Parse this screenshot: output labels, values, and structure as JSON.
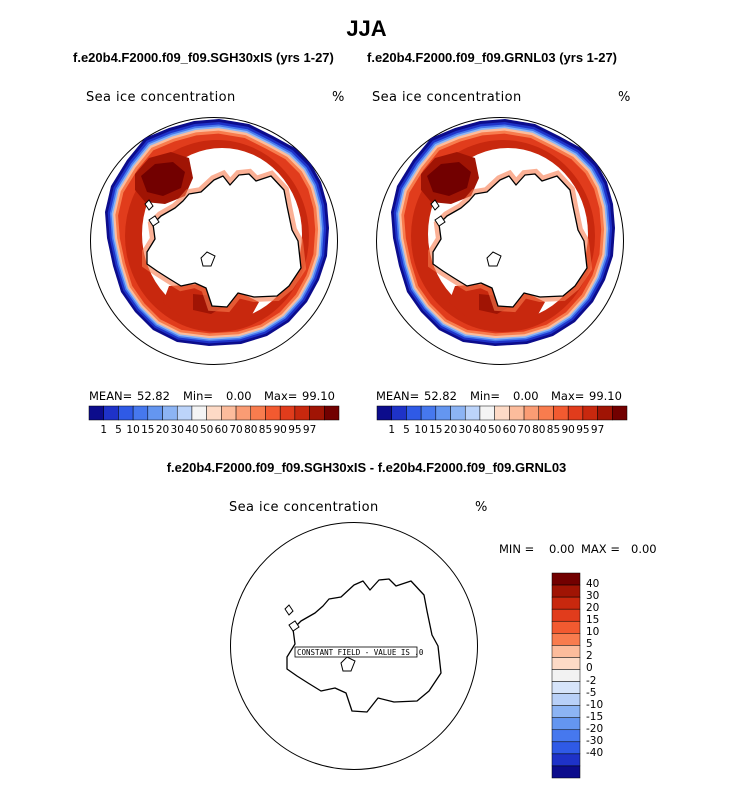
{
  "figure": {
    "title": "JJA",
    "diff_title": "f.e20b4.F2000.f09_f09.SGH30xIS - f.e20b4.F2000.f09_f09.GRNL03"
  },
  "colors": {
    "cbar": [
      "#0c0c8c",
      "#1e32c8",
      "#2f5ae6",
      "#4678ee",
      "#6496f0",
      "#8cb4f4",
      "#bcd4fa",
      "#f4f4f4",
      "#fddac6",
      "#fcbc9c",
      "#fa9c74",
      "#f87c4e",
      "#f25a30",
      "#e13c1c",
      "#c8280e",
      "#a01404",
      "#720000"
    ],
    "diff": [
      "#720000",
      "#a01404",
      "#c8280e",
      "#e13c1c",
      "#f25a30",
      "#f87c4e",
      "#fcbc9c",
      "#fddac6",
      "#f2f2f2",
      "#d6e4fa",
      "#b8d0f8",
      "#8cb4f4",
      "#6496f0",
      "#4678ee",
      "#2f5ae6",
      "#1e32c8",
      "#0c0c8c"
    ]
  },
  "chart_data": [
    {
      "type": "heatmap",
      "title": "f.e20b4.F2000.f09_f09.SGH30xIS (yrs 1-27)",
      "field_label": "Sea ice concentration",
      "units": "%",
      "stats": {
        "mean_label": "MEAN=",
        "mean": "52.82",
        "min_label": "Min=",
        "min": "0.00",
        "max_label": "Max=",
        "max": "99.10"
      },
      "levels": [
        "1",
        "5",
        "10",
        "15",
        "20",
        "30",
        "40",
        "50",
        "60",
        "70",
        "80",
        "85",
        "90",
        "95",
        "97"
      ]
    },
    {
      "type": "heatmap",
      "title": "f.e20b4.F2000.f09_f09.GRNL03 (yrs 1-27)",
      "field_label": "Sea ice concentration",
      "units": "%",
      "stats": {
        "mean_label": "MEAN=",
        "mean": "52.82",
        "min_label": "Min=",
        "min": "0.00",
        "max_label": "Max=",
        "max": "99.10"
      },
      "levels": [
        "1",
        "5",
        "10",
        "15",
        "20",
        "30",
        "40",
        "50",
        "60",
        "70",
        "80",
        "85",
        "90",
        "95",
        "97"
      ]
    },
    {
      "type": "heatmap",
      "field_label": "Sea ice concentration",
      "units": "%",
      "stats": {
        "min_label": "MIN =",
        "min": "0.00",
        "max_label": "MAX =",
        "max": "0.00"
      },
      "annotation": "CONSTANT FIELD - VALUE IS .0",
      "levels": [
        "40",
        "30",
        "20",
        "15",
        "10",
        "5",
        "2",
        "0",
        "-2",
        "-5",
        "-10",
        "-15",
        "-20",
        "-30",
        "-40"
      ]
    }
  ]
}
